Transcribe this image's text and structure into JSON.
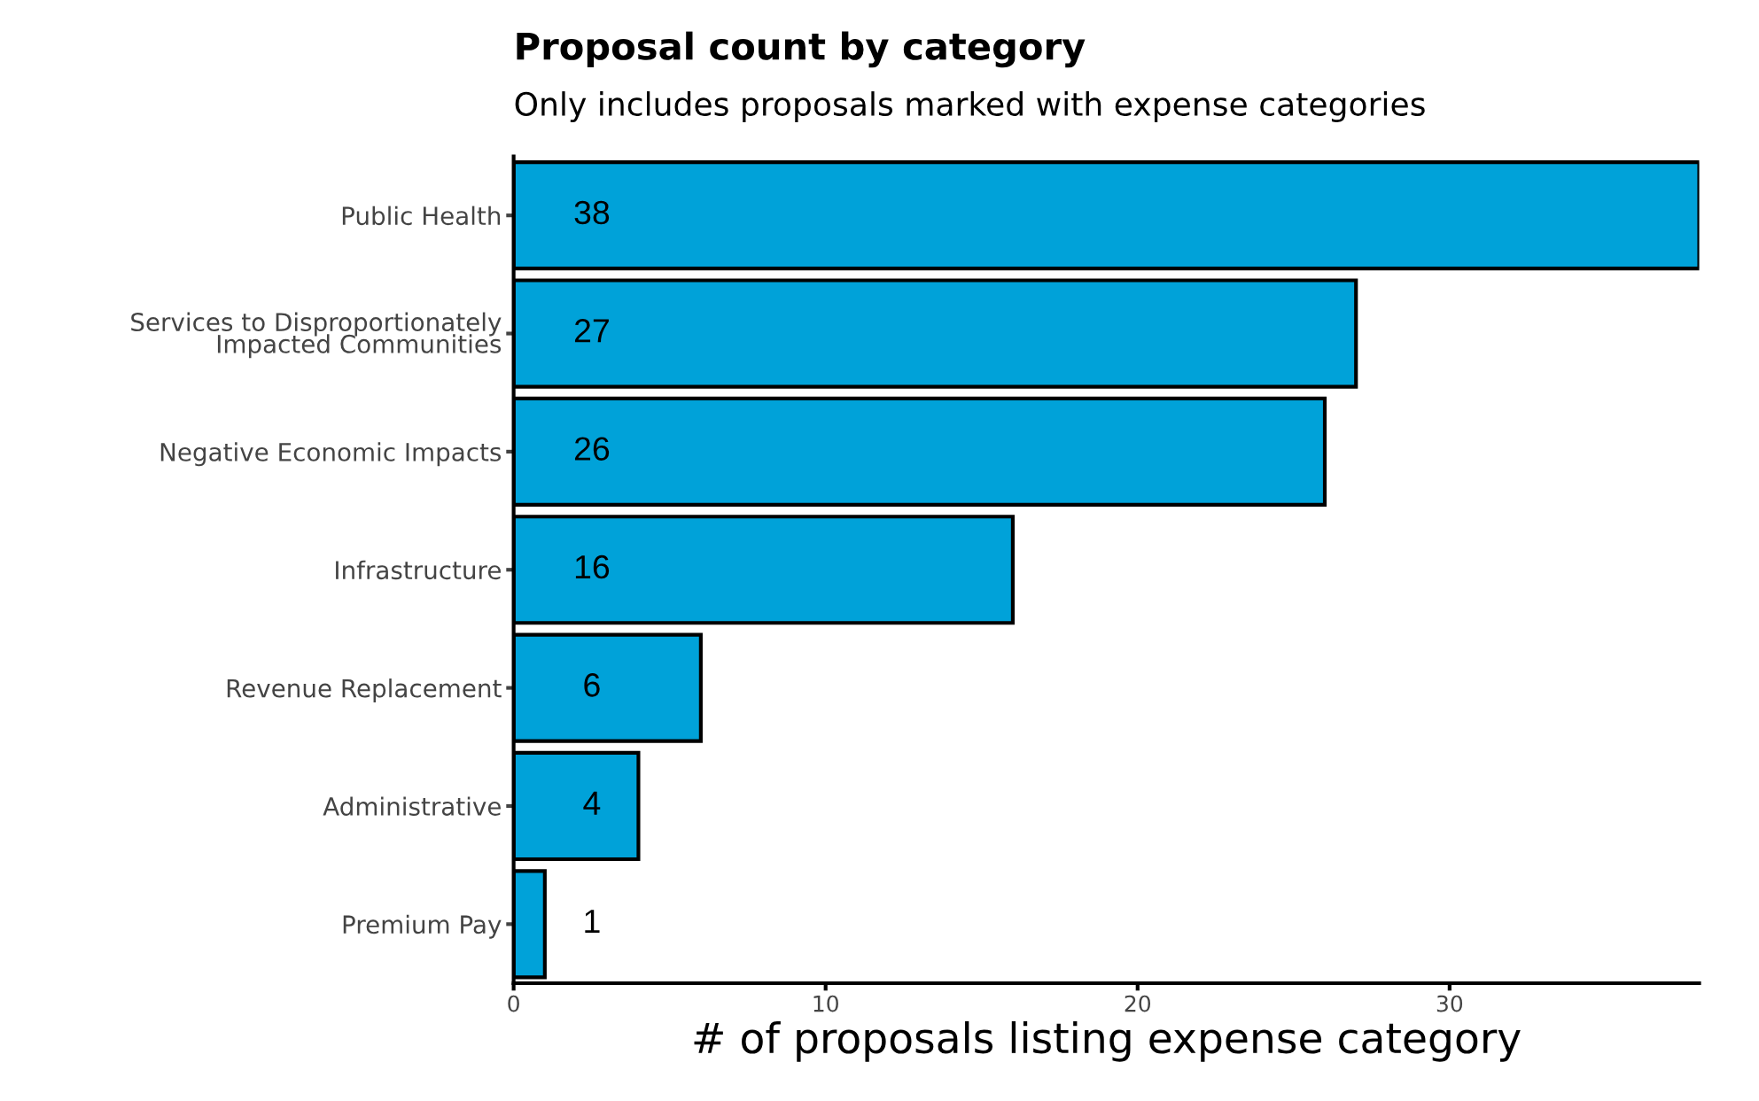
{
  "chart_data": {
    "type": "bar",
    "orientation": "horizontal",
    "title": "Proposal count by category",
    "subtitle": "Only includes proposals marked with expense categories",
    "xlabel": "# of proposals listing expense category",
    "categories": [
      "Public Health",
      "Services to Disproportionately\nImpacted Communities",
      "Negative Economic Impacts",
      "Infrastructure",
      "Revenue Replacement",
      "Administrative",
      "Premium Pay"
    ],
    "values": [
      38,
      27,
      26,
      16,
      6,
      4,
      1
    ],
    "color": "#00a2d9",
    "xlim": [
      0,
      38
    ],
    "xticks": [
      0,
      10,
      20,
      30
    ],
    "data_labels": true,
    "grid": false,
    "legend": false
  }
}
